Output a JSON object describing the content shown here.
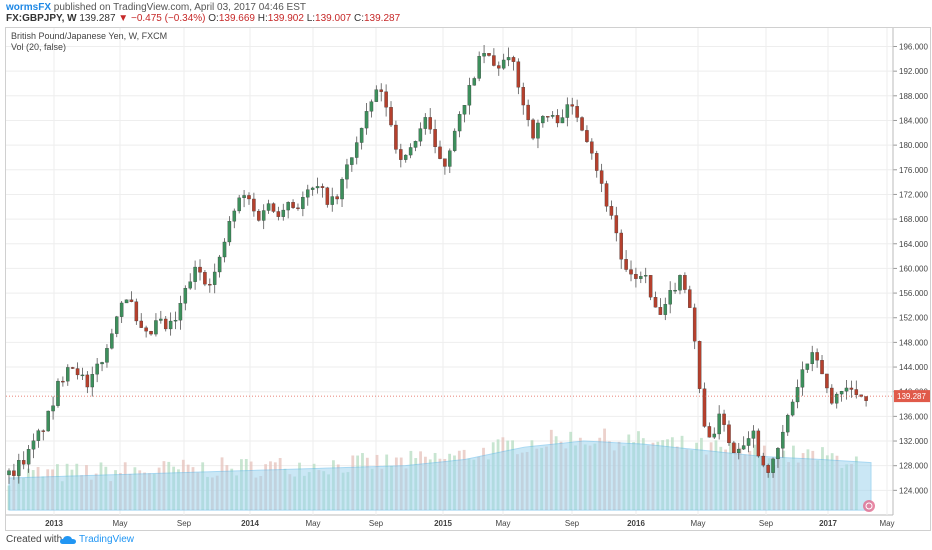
{
  "header": {
    "author": "wormsFX",
    "published_text": "published on TradingView.com, April 03, 2017 04:46 EST",
    "symbol_line": "FX:GBPJPY, W",
    "last": "139.287",
    "change": "−0.475 (−0.34%)",
    "open_label": "O:",
    "open": "139.669",
    "high_label": "H:",
    "high": "139.902",
    "low_label": "L:",
    "low": "139.007",
    "close_label": "C:",
    "close": "139.287"
  },
  "legend": {
    "series_title": "British Pound/Japanese Yen, W, FXCM",
    "volume_title": "Vol (20, false)"
  },
  "footer": {
    "created_with": "Created with",
    "brand": "TradingView"
  },
  "colors": {
    "up": "#3d8f5c",
    "down": "#b5402d",
    "volume": "#9fd4ee",
    "volume_ma": "#62b9e8",
    "price_line": "#e05a4a",
    "grid": "#eeeeee"
  },
  "chart_data": {
    "type": "candlestick",
    "title": "British Pound/Japanese Yen, W, FXCM",
    "timeframe": "W",
    "ylim": [
      120.0,
      199.0
    ],
    "y_ticks": [
      "196.000",
      "192.000",
      "188.000",
      "184.000",
      "180.000",
      "176.000",
      "172.000",
      "168.000",
      "164.000",
      "160.000",
      "156.000",
      "152.000",
      "148.000",
      "144.000",
      "140.000",
      "136.000",
      "132.000",
      "128.000",
      "124.000"
    ],
    "x_ticks": [
      "2013",
      "May",
      "Sep",
      "2014",
      "May",
      "Sep",
      "2015",
      "May",
      "Sep",
      "2016",
      "May",
      "Sep",
      "2017",
      "May"
    ],
    "last_price": 139.287,
    "last_price_label": "139.287",
    "price_path": [
      [
        0,
        126.5
      ],
      [
        4,
        130.0
      ],
      [
        8,
        136.0
      ],
      [
        10,
        141.0
      ],
      [
        12,
        145.0
      ],
      [
        14,
        143.5
      ],
      [
        16,
        140.0
      ],
      [
        18,
        144.5
      ],
      [
        20,
        147.0
      ],
      [
        22,
        154.0
      ],
      [
        24,
        156.0
      ],
      [
        26,
        150.0
      ],
      [
        28,
        148.5
      ],
      [
        30,
        151.5
      ],
      [
        32,
        150.0
      ],
      [
        34,
        152.0
      ],
      [
        36,
        157.5
      ],
      [
        38,
        160.0
      ],
      [
        40,
        158.0
      ],
      [
        42,
        159.5
      ],
      [
        44,
        166.0
      ],
      [
        46,
        170.5
      ],
      [
        48,
        172.0
      ],
      [
        50,
        168.0
      ],
      [
        52,
        170.5
      ],
      [
        54,
        169.0
      ],
      [
        56,
        171.0
      ],
      [
        58,
        170.0
      ],
      [
        60,
        172.0
      ],
      [
        62,
        173.0
      ],
      [
        64,
        171.5
      ],
      [
        66,
        170.5
      ],
      [
        68,
        176.0
      ],
      [
        70,
        180.0
      ],
      [
        72,
        184.0
      ],
      [
        74,
        189.0
      ],
      [
        76,
        187.0
      ],
      [
        78,
        180.0
      ],
      [
        80,
        177.5
      ],
      [
        82,
        181.0
      ],
      [
        84,
        184.5
      ],
      [
        86,
        179.0
      ],
      [
        88,
        177.0
      ],
      [
        90,
        183.0
      ],
      [
        92,
        186.0
      ],
      [
        94,
        192.0
      ],
      [
        96,
        195.0
      ],
      [
        98,
        192.5
      ],
      [
        100,
        193.5
      ],
      [
        102,
        193.0
      ],
      [
        104,
        186.0
      ],
      [
        106,
        181.5
      ],
      [
        108,
        185.0
      ],
      [
        110,
        184.0
      ],
      [
        112,
        185.5
      ],
      [
        114,
        186.0
      ],
      [
        116,
        183.0
      ],
      [
        118,
        178.5
      ],
      [
        120,
        172.0
      ],
      [
        122,
        168.0
      ],
      [
        124,
        160.0
      ],
      [
        126,
        157.5
      ],
      [
        128,
        160.0
      ],
      [
        130,
        153.5
      ],
      [
        132,
        152.0
      ],
      [
        134,
        157.0
      ],
      [
        136,
        159.0
      ],
      [
        138,
        152.0
      ],
      [
        140,
        134.5
      ],
      [
        142,
        133.0
      ],
      [
        144,
        136.5
      ],
      [
        146,
        130.0
      ],
      [
        148,
        132.0
      ],
      [
        150,
        134.0
      ],
      [
        152,
        128.5
      ],
      [
        154,
        127.5
      ],
      [
        156,
        132.5
      ],
      [
        158,
        138.0
      ],
      [
        160,
        143.0
      ],
      [
        162,
        145.5
      ],
      [
        164,
        143.5
      ],
      [
        166,
        138.0
      ],
      [
        168,
        141.0
      ],
      [
        170,
        140.0
      ],
      [
        172,
        139.5
      ],
      [
        174,
        139.3
      ]
    ],
    "volume_path": [
      [
        0,
        126.0
      ],
      [
        20,
        126.5
      ],
      [
        40,
        127.0
      ],
      [
        60,
        127.5
      ],
      [
        80,
        128.0
      ],
      [
        92,
        129.0
      ],
      [
        104,
        131.0
      ],
      [
        116,
        132.0
      ],
      [
        128,
        131.5
      ],
      [
        140,
        130.5
      ],
      [
        152,
        129.5
      ],
      [
        164,
        129.0
      ],
      [
        174,
        128.5
      ]
    ]
  }
}
